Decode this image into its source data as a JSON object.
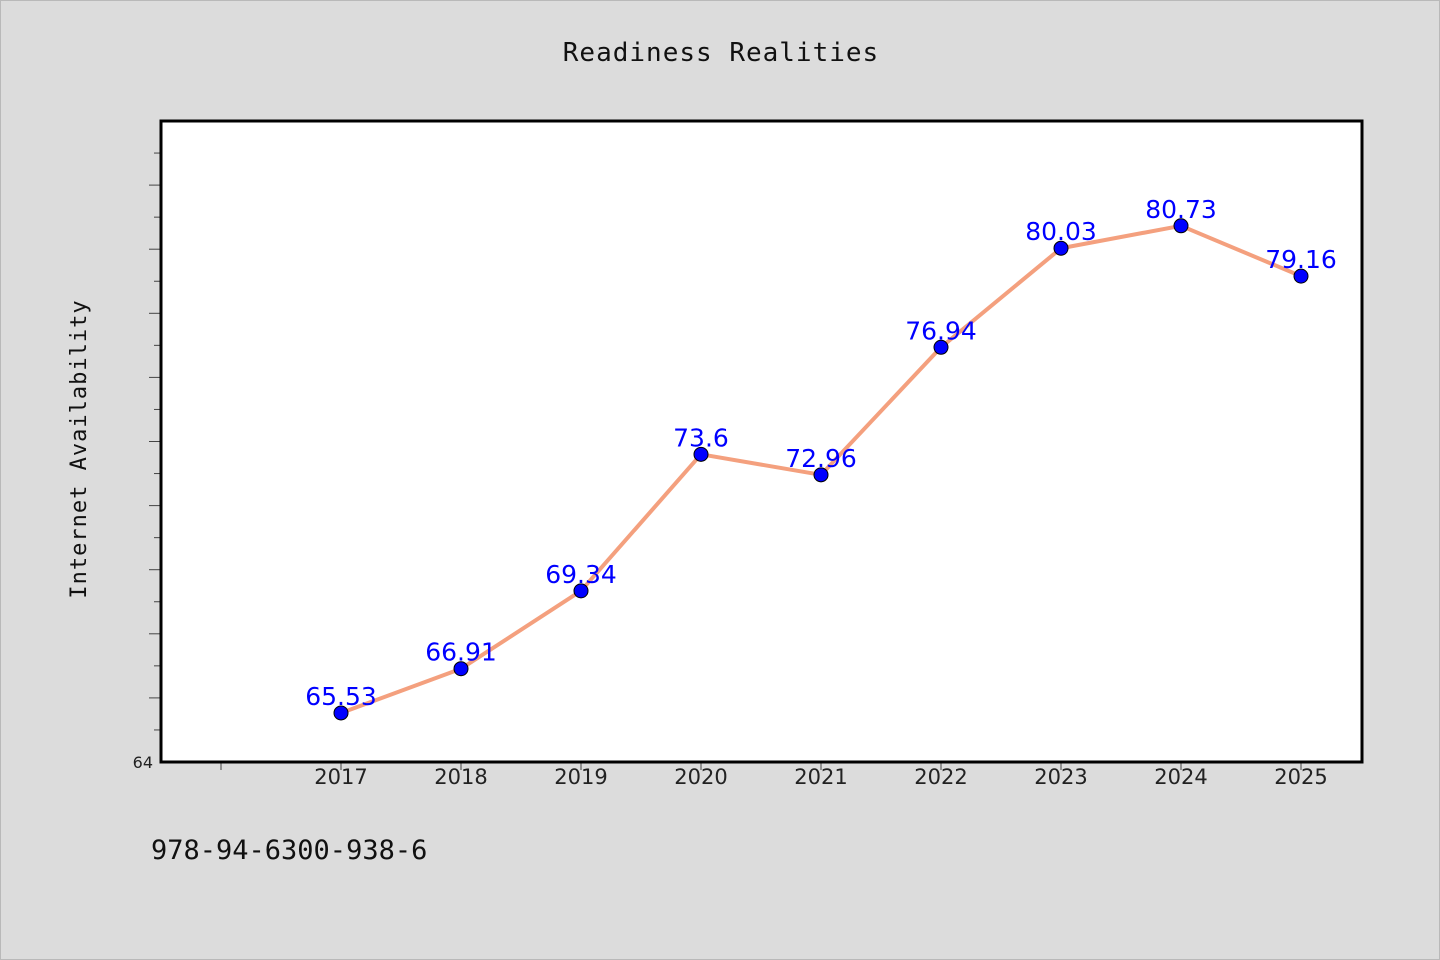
{
  "chart_data": {
    "type": "line",
    "title": "Readiness Realities",
    "xlabel": "",
    "ylabel": "Internet Availability",
    "categories": [
      "2017",
      "2018",
      "2019",
      "2020",
      "2021",
      "2022",
      "2023",
      "2024",
      "2025"
    ],
    "series": [
      {
        "values": [
          65.53,
          66.91,
          69.34,
          73.6,
          72.96,
          76.94,
          80.03,
          80.73,
          79.16
        ],
        "labels": [
          "65.53",
          "66.91",
          "69.34",
          "73.6",
          "72.96",
          "76.94",
          "80.03",
          "80.73",
          "79.16"
        ],
        "line_color": "#f4a07e",
        "marker_color": "#0000ff"
      }
    ],
    "ylim": [
      64,
      84
    ],
    "y_tick_labels": [
      "64"
    ],
    "grid": false,
    "legend": "none"
  },
  "footer_text": "978-94-6300-938-6"
}
